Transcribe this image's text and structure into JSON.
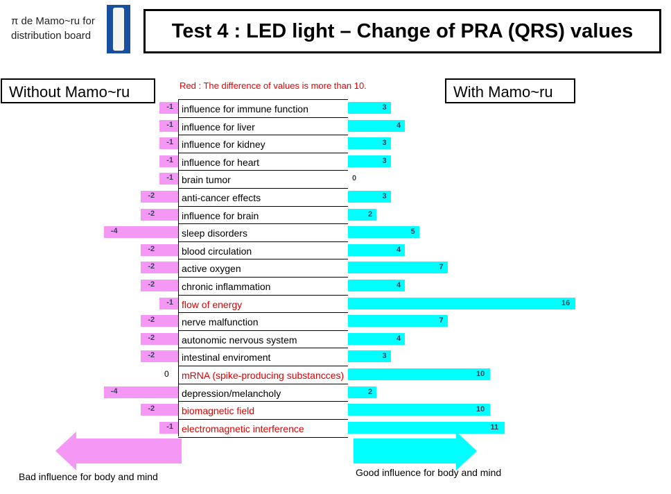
{
  "header": {
    "subtitle_line1": "π de Mamo~ru for",
    "subtitle_line2": "distribution board",
    "title": "Test 4 : LED light – Change of PRA (QRS) values"
  },
  "note": "Red : The difference of values is more than 10.",
  "left_label": "Without Mamo~ru",
  "right_label": "With Mamo~ru",
  "bad_label": "Bad influence for body and mind",
  "good_label": "Good influence for body and mind",
  "colors": {
    "without": "#f598f5",
    "with": "#00ffff",
    "highlight": "#e00000"
  },
  "chart_data": {
    "type": "bar",
    "title": "Test 4 : LED light – Change of PRA (QRS) values",
    "categories": [
      "influence for immune function",
      "influence for liver",
      "influence for kidney",
      "influence for heart",
      "brain tumor",
      "anti-cancer effects",
      "influence for brain",
      "sleep disorders",
      "blood circulation",
      "active oxygen",
      "chronic inflammation",
      "flow of energy",
      "nerve malfunction",
      "autonomic nervous system",
      "intestinal enviroment",
      "mRNA (spike-producing substancces)",
      "depression/melancholy",
      "biomagnetic field",
      "electromagnetic interference"
    ],
    "highlighted": [
      false,
      false,
      false,
      false,
      false,
      false,
      false,
      false,
      false,
      false,
      false,
      true,
      false,
      false,
      false,
      true,
      false,
      true,
      true
    ],
    "series": [
      {
        "name": "Without Mamo~ru",
        "values": [
          -1,
          -1,
          -1,
          -1,
          -1,
          -2,
          -2,
          -4,
          -2,
          -2,
          -2,
          -1,
          -2,
          -2,
          -2,
          0,
          -4,
          -2,
          -1
        ]
      },
      {
        "name": "With Mamo~ru",
        "values": [
          3,
          4,
          3,
          3,
          0,
          3,
          2,
          5,
          4,
          7,
          4,
          16,
          7,
          4,
          3,
          10,
          2,
          10,
          11
        ]
      }
    ]
  }
}
